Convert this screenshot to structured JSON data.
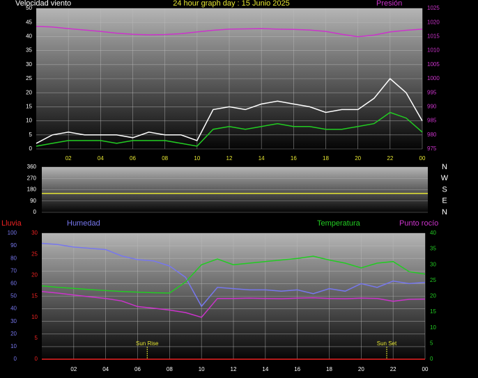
{
  "chart_data": [
    {
      "type": "line",
      "title": "24 hour graph day : 15 Junio 2025",
      "ylabel": "Velocidad viento",
      "y2label": "Presión",
      "x": [
        0,
        1,
        2,
        3,
        4,
        5,
        6,
        7,
        8,
        9,
        10,
        11,
        12,
        13,
        14,
        15,
        16,
        17,
        18,
        19,
        20,
        21,
        22,
        23,
        24
      ],
      "xlim": [
        0,
        24
      ],
      "xticks": [
        {
          "value": 2,
          "label": "02"
        },
        {
          "value": 4,
          "label": "04"
        },
        {
          "value": 6,
          "label": "06"
        },
        {
          "value": 8,
          "label": "08"
        },
        10,
        12,
        14,
        16,
        18,
        20,
        22,
        {
          "value": 24,
          "label": "00"
        }
      ],
      "ylim": [
        0,
        50
      ],
      "yticks": [
        0,
        5,
        10,
        15,
        20,
        25,
        30,
        35,
        40,
        45,
        50
      ],
      "y2lim": [
        975,
        1025
      ],
      "y2ticks": [
        975,
        980,
        985,
        990,
        995,
        1000,
        1005,
        1010,
        1015,
        1020,
        1025
      ],
      "grid": true,
      "series": [
        {
          "color": "#ffffff",
          "values": [
            2,
            5,
            6,
            5,
            5,
            5,
            4,
            6,
            5,
            5,
            3,
            14,
            15,
            14,
            16,
            17,
            16,
            15,
            13,
            14,
            14,
            18,
            25,
            20,
            10
          ]
        },
        {
          "color": "#22cc22",
          "values": [
            1,
            2,
            3,
            3,
            3,
            2,
            3,
            3,
            3,
            2,
            1,
            7,
            8,
            7,
            8,
            9,
            8,
            8,
            7,
            7,
            8,
            9,
            13,
            11,
            6
          ]
        },
        {
          "color": "#cc33cc",
          "axis": "y2",
          "values": [
            1018.6,
            1018.4,
            1017.8,
            1017.3,
            1016.8,
            1016.2,
            1015.8,
            1015.6,
            1015.7,
            1016,
            1016.6,
            1017.2,
            1017.6,
            1017.7,
            1017.8,
            1017.6,
            1017.5,
            1017.3,
            1016.8,
            1015.8,
            1014.9,
            1015.5,
            1016.6,
            1017.2,
            1017.6
          ]
        }
      ]
    },
    {
      "type": "line",
      "compass": [
        "N",
        "W",
        "S",
        "E",
        "N"
      ],
      "x": [
        0,
        4,
        8,
        12,
        16,
        20,
        24
      ],
      "xlim": [
        0,
        24
      ],
      "ylim": [
        0,
        360
      ],
      "yticks": [
        0,
        90,
        180,
        270,
        360
      ],
      "grid": true,
      "series": [
        {
          "color": "#e6e632",
          "values": [
            150,
            150,
            150,
            150,
            150,
            150,
            150
          ]
        }
      ]
    },
    {
      "type": "line",
      "y3label": "Lluvia",
      "ylabel": "Humedad",
      "y2label": "Temperatura",
      "dewlabel": "Punto rocío",
      "x": [
        0,
        1,
        2,
        3,
        4,
        5,
        6,
        7,
        8,
        9,
        10,
        11,
        12,
        13,
        14,
        15,
        16,
        17,
        18,
        19,
        20,
        21,
        22,
        23,
        24
      ],
      "xlim": [
        0,
        24
      ],
      "xticks": [
        {
          "value": 2,
          "label": "02"
        },
        {
          "value": 4,
          "label": "04"
        },
        {
          "value": 6,
          "label": "06"
        },
        {
          "value": 8,
          "label": "08"
        },
        10,
        12,
        14,
        16,
        18,
        20,
        22,
        {
          "value": 24,
          "label": "00"
        }
      ],
      "ylim": [
        0,
        100
      ],
      "yticks": [
        0,
        10,
        20,
        30,
        40,
        50,
        60,
        70,
        80,
        90,
        100
      ],
      "y2lim": [
        0,
        40
      ],
      "y2ticks": [
        0,
        5,
        10,
        15,
        20,
        25,
        30,
        35,
        40
      ],
      "y3lim": [
        0,
        30
      ],
      "y3ticks": [
        0,
        5,
        10,
        15,
        20,
        25,
        30
      ],
      "grid": true,
      "annotations": [
        {
          "text": "Sun Rise",
          "x": 6.6
        },
        {
          "text": "Sun Set",
          "x": 21.6
        }
      ],
      "series": [
        {
          "color": "#7777ee",
          "values": [
            92,
            91,
            89,
            88,
            87,
            82,
            79,
            78,
            74,
            65,
            42,
            57,
            56,
            55,
            55,
            54,
            55,
            52,
            56,
            54,
            60,
            57,
            62,
            60,
            61
          ]
        },
        {
          "color": "#22cc22",
          "axis": "y2",
          "values": [
            23.3,
            22.8,
            22.5,
            22.1,
            21.8,
            21.5,
            21.3,
            21.1,
            21,
            24.5,
            30,
            31.8,
            30,
            30.5,
            31,
            31.5,
            32,
            32.7,
            31.5,
            30.5,
            29,
            30.5,
            31,
            27.8,
            27
          ]
        },
        {
          "color": "#cc33cc",
          "axis": "y2",
          "values": [
            21.5,
            21,
            20.4,
            19.8,
            19.3,
            18.5,
            16.7,
            16.2,
            15.6,
            14.8,
            13.3,
            19.3,
            19.3,
            19.4,
            19.3,
            19.2,
            19.4,
            19.5,
            19.3,
            19.2,
            19.4,
            19.3,
            18.4,
            19,
            19.1
          ]
        },
        {
          "color": "#ee2222",
          "axis": "y3",
          "values": [
            0,
            0,
            0,
            0,
            0,
            0,
            0,
            0,
            0,
            0,
            0,
            0,
            0,
            0,
            0,
            0,
            0,
            0,
            0,
            0,
            0,
            0,
            0,
            0,
            0
          ]
        }
      ]
    }
  ]
}
